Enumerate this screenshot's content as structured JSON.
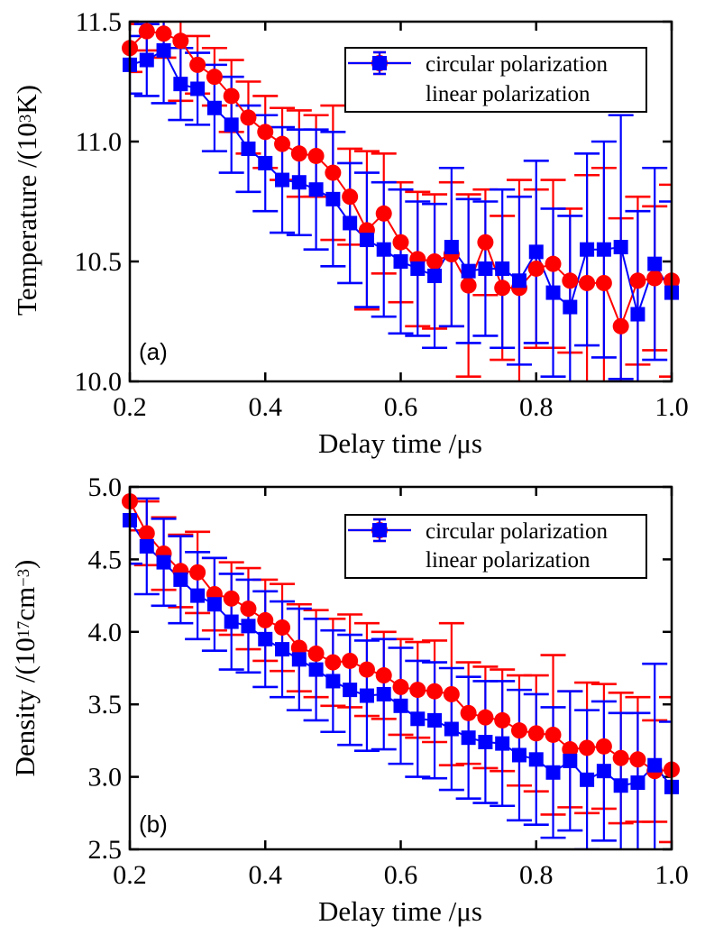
{
  "figure": {
    "background": "#ffffff",
    "frame_color": "#000000",
    "circular_color": "#ff0000",
    "linear_color": "#0000ff"
  },
  "legend": {
    "circular_label": "circular polarization",
    "linear_label": "linear polarization"
  },
  "axes": {
    "xlabel": "Delay time /μs",
    "temperature_title": {
      "pre": "Temperature /(10",
      "exp1": "3",
      "mid": "K)",
      "exp2": "",
      "post": ""
    },
    "density_title": {
      "pre": "Density /(10",
      "exp1": "17",
      "mid": "cm",
      "exp2": "−3",
      "post": ")"
    }
  },
  "chart_data": [
    {
      "type": "line",
      "error_bars": true,
      "panel_label": "(a)",
      "xlabel": "Delay time /μs",
      "ylabel": "Temperature /(10^3 K)",
      "xlim": [
        0.2,
        1.0
      ],
      "ylim": [
        10.0,
        11.5
      ],
      "xticks": [
        0.2,
        0.4,
        0.6,
        0.8,
        1.0
      ],
      "xtick_labels": [
        "0.2",
        "0.4",
        "0.6",
        "0.8",
        "1.0"
      ],
      "yticks": [
        11.5,
        11.0,
        10.5,
        10.0
      ],
      "ytick_labels": [
        "11.5",
        "11.0",
        "10.5",
        "10.0"
      ],
      "legend_position": "upper right",
      "grid": false,
      "x": [
        0.2,
        0.225,
        0.25,
        0.275,
        0.3,
        0.325,
        0.35,
        0.375,
        0.4,
        0.425,
        0.45,
        0.475,
        0.5,
        0.525,
        0.55,
        0.575,
        0.6,
        0.625,
        0.65,
        0.675,
        0.7,
        0.725,
        0.75,
        0.775,
        0.8,
        0.825,
        0.85,
        0.875,
        0.9,
        0.925,
        0.95,
        0.975,
        1.0
      ],
      "series": [
        {
          "name": "circular polarization",
          "marker": "circle",
          "color": "#ff0000",
          "values": [
            11.39,
            11.46,
            11.45,
            11.42,
            11.32,
            11.27,
            11.19,
            11.1,
            11.04,
            10.99,
            10.95,
            10.94,
            10.87,
            10.77,
            10.63,
            10.7,
            10.58,
            10.51,
            10.5,
            10.53,
            10.4,
            10.58,
            10.39,
            10.39,
            10.47,
            10.49,
            10.42,
            10.41,
            10.41,
            10.23,
            10.42,
            10.43,
            10.42
          ],
          "errors": [
            0.1,
            0.08,
            0.1,
            0.25,
            0.12,
            0.12,
            0.15,
            0.15,
            0.15,
            0.15,
            0.18,
            0.17,
            0.28,
            0.2,
            0.33,
            0.25,
            0.25,
            0.28,
            0.28,
            0.3,
            0.38,
            0.22,
            0.3,
            0.45,
            0.33,
            0.35,
            0.3,
            0.45,
            0.48,
            0.45,
            0.35,
            0.3,
            0.4
          ]
        },
        {
          "name": "linear polarization",
          "marker": "square",
          "color": "#0000ff",
          "values": [
            11.32,
            11.34,
            11.38,
            11.24,
            11.22,
            11.14,
            11.07,
            10.97,
            10.91,
            10.84,
            10.83,
            10.8,
            10.76,
            10.66,
            10.59,
            10.55,
            10.5,
            10.47,
            10.44,
            10.56,
            10.46,
            10.47,
            10.47,
            10.42,
            10.54,
            10.37,
            10.31,
            10.55,
            10.55,
            10.56,
            10.28,
            10.49,
            10.37
          ],
          "errors": [
            0.12,
            0.15,
            0.22,
            0.15,
            0.15,
            0.18,
            0.2,
            0.18,
            0.2,
            0.22,
            0.22,
            0.25,
            0.28,
            0.25,
            0.28,
            0.28,
            0.3,
            0.28,
            0.3,
            0.33,
            0.3,
            0.28,
            0.33,
            0.35,
            0.38,
            0.35,
            0.38,
            0.4,
            0.45,
            0.55,
            0.43,
            0.4,
            0.38
          ]
        }
      ]
    },
    {
      "type": "line",
      "error_bars": true,
      "panel_label": "(b)",
      "xlabel": "Delay time /μs",
      "ylabel": "Density /(10^17 cm^-3)",
      "xlim": [
        0.2,
        1.0
      ],
      "ylim": [
        2.5,
        5.0
      ],
      "xticks": [
        0.2,
        0.4,
        0.6,
        0.8,
        1.0
      ],
      "xtick_labels": [
        "0.2",
        "0.4",
        "0.6",
        "0.8",
        "1.0"
      ],
      "yticks": [
        5.0,
        4.5,
        4.0,
        3.5,
        3.0,
        2.5
      ],
      "ytick_labels": [
        "5.0",
        "4.5",
        "4.0",
        "3.5",
        "3.0",
        "2.5"
      ],
      "legend_position": "upper right",
      "grid": false,
      "x": [
        0.2,
        0.225,
        0.25,
        0.275,
        0.3,
        0.325,
        0.35,
        0.375,
        0.4,
        0.425,
        0.45,
        0.475,
        0.5,
        0.525,
        0.55,
        0.575,
        0.6,
        0.625,
        0.65,
        0.675,
        0.7,
        0.725,
        0.75,
        0.775,
        0.8,
        0.825,
        0.85,
        0.875,
        0.9,
        0.925,
        0.95,
        0.975,
        1.0
      ],
      "series": [
        {
          "name": "circular polarization",
          "marker": "circle",
          "color": "#ff0000",
          "values": [
            4.9,
            4.68,
            4.54,
            4.42,
            4.41,
            4.26,
            4.23,
            4.16,
            4.08,
            4.03,
            3.89,
            3.85,
            3.79,
            3.8,
            3.74,
            3.7,
            3.62,
            3.6,
            3.59,
            3.57,
            3.44,
            3.41,
            3.39,
            3.32,
            3.3,
            3.29,
            3.19,
            3.2,
            3.21,
            3.13,
            3.12,
            3.04,
            3.05
          ],
          "errors": [
            0.2,
            0.22,
            0.25,
            0.25,
            0.28,
            0.25,
            0.25,
            0.28,
            0.28,
            0.3,
            0.3,
            0.3,
            0.3,
            0.32,
            0.32,
            0.3,
            0.33,
            0.33,
            0.35,
            0.49,
            0.35,
            0.35,
            0.35,
            0.38,
            0.4,
            0.55,
            0.4,
            0.45,
            0.43,
            0.45,
            0.43,
            0.35,
            0.5
          ]
        },
        {
          "name": "linear polarization",
          "marker": "square",
          "color": "#0000ff",
          "values": [
            4.77,
            4.59,
            4.48,
            4.36,
            4.25,
            4.19,
            4.07,
            4.04,
            3.95,
            3.88,
            3.81,
            3.74,
            3.66,
            3.6,
            3.56,
            3.57,
            3.49,
            3.4,
            3.39,
            3.33,
            3.27,
            3.24,
            3.23,
            3.15,
            3.12,
            3.03,
            3.11,
            2.98,
            3.04,
            2.94,
            2.96,
            3.08,
            2.93
          ],
          "errors": [
            0.3,
            0.33,
            0.3,
            0.3,
            0.3,
            0.32,
            0.33,
            0.32,
            0.33,
            0.33,
            0.35,
            0.35,
            0.35,
            0.38,
            0.38,
            0.38,
            0.4,
            0.4,
            0.4,
            0.42,
            0.42,
            0.42,
            0.43,
            0.45,
            0.45,
            0.45,
            0.48,
            0.48,
            0.48,
            0.5,
            0.48,
            0.7,
            0.45
          ]
        }
      ]
    }
  ]
}
